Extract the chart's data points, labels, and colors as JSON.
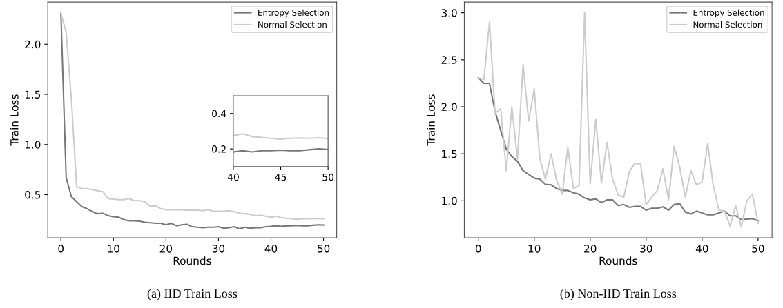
{
  "chart_data": [
    {
      "type": "line",
      "title": "(a) IID Train Loss",
      "xlabel": "Rounds",
      "ylabel": "Train Loss",
      "x": [
        0,
        1,
        2,
        3,
        4,
        5,
        6,
        7,
        8,
        9,
        10,
        11,
        12,
        13,
        14,
        15,
        16,
        17,
        18,
        19,
        20,
        21,
        22,
        23,
        24,
        25,
        26,
        27,
        28,
        29,
        30,
        31,
        32,
        33,
        34,
        35,
        36,
        37,
        38,
        39,
        40,
        41,
        42,
        43,
        44,
        45,
        46,
        47,
        48,
        49,
        50
      ],
      "series": [
        {
          "name": "Entropy Selection",
          "color": "#777777",
          "values": [
            2.31,
            0.67,
            0.48,
            0.43,
            0.38,
            0.36,
            0.33,
            0.31,
            0.315,
            0.29,
            0.28,
            0.275,
            0.25,
            0.24,
            0.24,
            0.235,
            0.225,
            0.22,
            0.215,
            0.215,
            0.2,
            0.215,
            0.19,
            0.2,
            0.205,
            0.18,
            0.175,
            0.17,
            0.175,
            0.175,
            0.18,
            0.165,
            0.17,
            0.18,
            0.16,
            0.175,
            0.165,
            0.17,
            0.17,
            0.18,
            0.183,
            0.19,
            0.183,
            0.19,
            0.19,
            0.193,
            0.19,
            0.19,
            0.195,
            0.2,
            0.197
          ]
        },
        {
          "name": "Normal Selection",
          "color": "#cccccc",
          "values": [
            2.31,
            2.12,
            1.45,
            0.58,
            0.56,
            0.56,
            0.55,
            0.54,
            0.53,
            0.46,
            0.455,
            0.45,
            0.45,
            0.46,
            0.44,
            0.44,
            0.43,
            0.385,
            0.39,
            0.36,
            0.35,
            0.35,
            0.35,
            0.35,
            0.345,
            0.345,
            0.345,
            0.34,
            0.35,
            0.335,
            0.335,
            0.335,
            0.34,
            0.33,
            0.315,
            0.31,
            0.305,
            0.29,
            0.295,
            0.285,
            0.275,
            0.285,
            0.27,
            0.265,
            0.26,
            0.255,
            0.26,
            0.262,
            0.26,
            0.263,
            0.258
          ]
        }
      ],
      "xlim": [
        -2.5,
        52.5
      ],
      "xticks": [
        0,
        10,
        20,
        30,
        40,
        50
      ],
      "ylim": [
        0.07,
        2.42
      ],
      "yticks": [
        0.5,
        {
          "value": 1,
          "label": "1.0"
        },
        1.5,
        {
          "value": 2,
          "label": "2.0"
        }
      ],
      "legend": "top right",
      "grid": false,
      "marker": "none",
      "line_style": "solid"
    },
    {
      "type": "line",
      "x": [
        40,
        41,
        42,
        43,
        44,
        45,
        46,
        47,
        48,
        49,
        50
      ],
      "series": [
        {
          "color": "#777777",
          "values": [
            0.183,
            0.19,
            0.183,
            0.19,
            0.19,
            0.193,
            0.19,
            0.19,
            0.195,
            0.2,
            0.197
          ]
        },
        {
          "color": "#cccccc",
          "values": [
            0.275,
            0.285,
            0.27,
            0.265,
            0.26,
            0.255,
            0.26,
            0.262,
            0.26,
            0.263,
            0.258
          ]
        }
      ],
      "xlim": [
        40,
        50
      ],
      "xticks": [
        40,
        45,
        50
      ],
      "ylim": [
        0.1,
        0.5
      ],
      "yticks": [
        0.2,
        0.4
      ],
      "grid": false,
      "marker": "none",
      "line_style": "solid"
    },
    {
      "type": "line",
      "title": "(b) Non-IID Train Loss",
      "xlabel": "Rounds",
      "ylabel": "Train Loss",
      "x": [
        0,
        1,
        2,
        3,
        4,
        5,
        6,
        7,
        8,
        9,
        10,
        11,
        12,
        13,
        14,
        15,
        16,
        17,
        18,
        19,
        20,
        21,
        22,
        23,
        24,
        25,
        26,
        27,
        28,
        29,
        30,
        31,
        32,
        33,
        34,
        35,
        36,
        37,
        38,
        39,
        40,
        41,
        42,
        43,
        44,
        45,
        46,
        47,
        48,
        49,
        50
      ],
      "series": [
        {
          "name": "Entropy Selection",
          "color": "#777777",
          "values": [
            2.31,
            2.25,
            2.25,
            1.95,
            1.75,
            1.55,
            1.47,
            1.42,
            1.32,
            1.28,
            1.24,
            1.23,
            1.175,
            1.17,
            1.13,
            1.11,
            1.11,
            1.085,
            1.07,
            1.03,
            1.01,
            1.02,
            0.98,
            1.01,
            1.01,
            0.95,
            0.96,
            0.93,
            0.94,
            0.94,
            0.9,
            0.92,
            0.92,
            0.935,
            0.9,
            0.96,
            0.97,
            0.88,
            0.86,
            0.89,
            0.87,
            0.85,
            0.85,
            0.87,
            0.89,
            0.84,
            0.84,
            0.8,
            0.805,
            0.81,
            0.785
          ]
        },
        {
          "name": "Normal Selection",
          "color": "#cccccc",
          "values": [
            2.31,
            2.29,
            2.9,
            1.93,
            1.98,
            1.32,
            2.0,
            1.44,
            2.45,
            1.85,
            2.19,
            1.45,
            1.23,
            1.5,
            1.22,
            1.07,
            1.57,
            1.13,
            1.16,
            3.0,
            1.18,
            1.87,
            1.19,
            1.62,
            1.23,
            1.06,
            1.04,
            1.31,
            1.4,
            1.39,
            0.96,
            1.04,
            1.11,
            1.34,
            1.01,
            1.58,
            1.36,
            1.04,
            1.32,
            1.17,
            1.2,
            1.61,
            1.16,
            0.9,
            0.89,
            0.73,
            0.95,
            0.72,
            1.0,
            1.07,
            0.76
          ]
        }
      ],
      "xlim": [
        -2.5,
        52.5
      ],
      "xticks": [
        0,
        10,
        20,
        30,
        40,
        50
      ],
      "ylim": [
        0.606,
        3.114
      ],
      "yticks": [
        {
          "value": 1,
          "label": "1.0"
        },
        1.5,
        {
          "value": 2,
          "label": "2.0"
        },
        2.5,
        {
          "value": 3,
          "label": "3.0"
        }
      ],
      "legend": "top right",
      "grid": false,
      "marker": "none",
      "line_style": "solid"
    }
  ]
}
